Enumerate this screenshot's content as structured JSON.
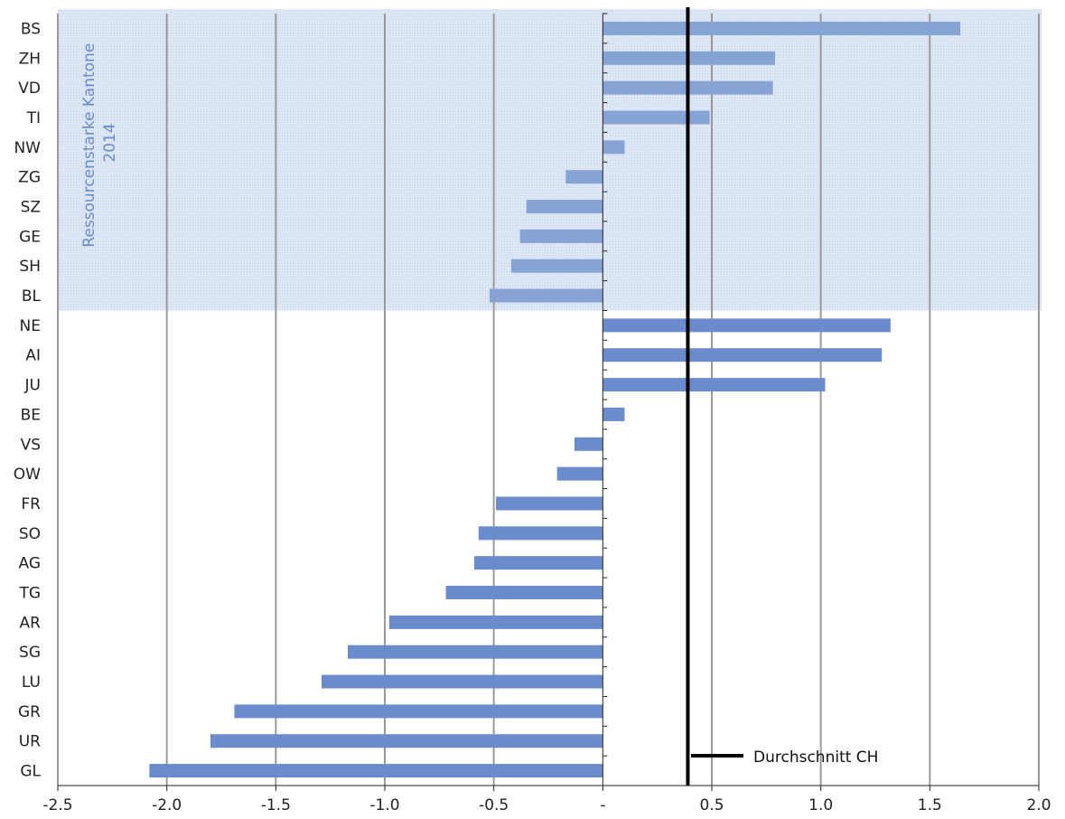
{
  "chart_data": {
    "type": "bar",
    "orientation": "horizontal",
    "categories": [
      "BS",
      "ZH",
      "VD",
      "TI",
      "NW",
      "ZG",
      "SZ",
      "GE",
      "SH",
      "BL",
      "NE",
      "AI",
      "JU",
      "BE",
      "VS",
      "OW",
      "FR",
      "SO",
      "AG",
      "TG",
      "AR",
      "SG",
      "LU",
      "GR",
      "UR",
      "GL"
    ],
    "values": [
      1.64,
      0.79,
      0.78,
      0.49,
      0.1,
      -0.17,
      -0.35,
      -0.38,
      -0.42,
      -0.52,
      1.32,
      1.28,
      1.02,
      0.1,
      -0.13,
      -0.21,
      -0.49,
      -0.57,
      -0.59,
      -0.72,
      -0.98,
      -1.17,
      -1.29,
      -1.69,
      -1.8,
      -2.08
    ],
    "xlim": [
      -2.5,
      2.0
    ],
    "xticks": [
      "-2.5",
      "-2.0",
      "-1.5",
      "-1.0",
      "-0.5",
      "-",
      "0.5",
      "1.0",
      "1.5",
      "2.0"
    ],
    "grid": "vertical",
    "highlight_band": {
      "categories": [
        "BS",
        "ZH",
        "VD",
        "TI",
        "NW",
        "ZG",
        "SZ",
        "GE",
        "SH",
        "BL"
      ],
      "label_line1": "Ressourcenstarke  Kantone",
      "label_line2": "2014"
    },
    "reference_line": {
      "value": 0.39,
      "label": "Durchschnitt CH"
    },
    "colors": {
      "bar": "#6a8ccc",
      "bar_band": "#86a3d6",
      "band_fill": "#dde6f4",
      "grid": "#9a9a9a",
      "reference": "#000000"
    }
  }
}
